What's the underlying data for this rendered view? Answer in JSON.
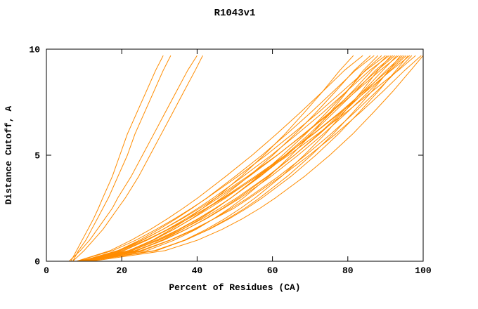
{
  "chart_data": {
    "type": "line",
    "title": "R1043v1",
    "xlabel": "Percent of Residues (CA)",
    "ylabel": "Distance Cutoff, A",
    "xlim": [
      0,
      100
    ],
    "ylim": [
      0,
      10
    ],
    "xticks": [
      0,
      20,
      40,
      60,
      80,
      100
    ],
    "yticks": [
      0,
      5,
      10
    ],
    "grid": false,
    "legend": "none",
    "line_color": "#FF8C00",
    "axis_color": "#000000",
    "cutoffs": [
      0,
      0.5,
      1,
      1.5,
      2,
      2.5,
      3,
      4,
      5,
      6,
      7,
      8,
      9,
      9.7
    ],
    "series": [
      [
        12,
        31.5,
        40.2,
        46.6,
        52,
        56.7,
        60.9,
        68.5,
        75.2,
        81.3,
        86.7,
        91.9,
        96.7,
        100
      ],
      [
        10,
        25,
        32.8,
        39,
        44.5,
        49.8,
        54.1,
        62.3,
        69.8,
        76.8,
        83.2,
        89.3,
        95.1,
        99.5
      ],
      [
        9,
        19.5,
        26.4,
        32.2,
        37.6,
        42.6,
        47.3,
        56,
        64.3,
        72,
        79.4,
        86.4,
        93.4,
        98
      ],
      [
        11,
        25.5,
        33,
        39.4,
        44.4,
        49.1,
        53.6,
        61.6,
        68.8,
        75.5,
        81.7,
        87.6,
        93.2,
        97
      ],
      [
        10,
        20.1,
        26.8,
        32.4,
        37.6,
        42.4,
        47,
        55.4,
        63.4,
        70.9,
        78,
        84.8,
        91.5,
        96.5
      ],
      [
        9,
        28.7,
        36.9,
        43.2,
        48.5,
        53.2,
        57.4,
        64.9,
        71.5,
        77.5,
        82.9,
        88,
        92.8,
        96
      ],
      [
        9,
        23.5,
        31,
        37,
        42.4,
        47.1,
        51.6,
        59.6,
        66.8,
        73.5,
        79.7,
        85.6,
        91.2,
        95.5
      ],
      [
        12,
        21.8,
        28.2,
        33.7,
        38.6,
        43.3,
        47.7,
        55.8,
        63.5,
        70.8,
        77.7,
        84.2,
        90.7,
        95
      ],
      [
        8,
        22.5,
        30,
        36,
        41.4,
        46.1,
        50.6,
        58.6,
        65.8,
        72.5,
        78.7,
        84.6,
        90.2,
        94.5
      ],
      [
        10,
        29.1,
        37,
        43,
        48.1,
        52.7,
        56.7,
        63.9,
        70.3,
        76.1,
        81.3,
        86.3,
        90.9,
        94
      ],
      [
        9,
        18.9,
        25.4,
        30.9,
        36,
        40.7,
        45.1,
        53.4,
        61.2,
        68.5,
        75.4,
        82.1,
        88.6,
        93.5
      ],
      [
        10,
        24,
        31.2,
        37.1,
        42.2,
        46.8,
        51.1,
        58.8,
        65.8,
        72.3,
        78.2,
        84,
        89.3,
        93
      ],
      [
        11,
        20.6,
        26.8,
        32.1,
        37,
        41.5,
        45.8,
        53.8,
        61.3,
        68.3,
        75.1,
        81.5,
        87.8,
        92.5
      ],
      [
        8,
        22,
        29.2,
        35.1,
        40.2,
        44.8,
        49.1,
        56.8,
        63.8,
        70.3,
        76.2,
        82,
        87.3,
        92
      ],
      [
        11,
        29.2,
        36.7,
        42.4,
        47.3,
        51.6,
        55.5,
        62.4,
        68.4,
        74,
        78.9,
        83.6,
        88,
        91.5
      ],
      [
        10,
        19.4,
        25.6,
        30.9,
        35.7,
        40.2,
        44.4,
        52.2,
        59.7,
        66.6,
        73.3,
        79.6,
        85.8,
        91
      ],
      [
        9,
        22.7,
        29.7,
        35.4,
        40.4,
        44.9,
        49.1,
        56.6,
        63.4,
        69.8,
        75.6,
        81.2,
        86.4,
        90.5
      ],
      [
        8,
        17.6,
        23.8,
        29.1,
        34,
        38.5,
        42.8,
        50.8,
        58.3,
        65.3,
        72.1,
        78.5,
        84.8,
        90
      ],
      [
        11,
        24,
        30.7,
        36.1,
        40.9,
        45.1,
        49.1,
        56.3,
        62.7,
        68.8,
        74.3,
        79.6,
        84.6,
        89
      ],
      [
        9,
        26.7,
        34,
        39.7,
        44.4,
        48.6,
        52.4,
        59.1,
        65,
        70.4,
        75.2,
        79.8,
        84.1,
        88
      ],
      [
        10,
        19,
        24.8,
        29.8,
        34.4,
        38.7,
        42.7,
        50.1,
        57.2,
        63.8,
        70.1,
        76.1,
        82,
        87
      ],
      [
        9,
        21.8,
        28.5,
        33.8,
        38.5,
        42.7,
        46.6,
        53.7,
        60.1,
        66,
        71.5,
        76.7,
        81.7,
        86
      ],
      [
        8,
        16.9,
        22.6,
        27.6,
        32.1,
        36.3,
        40.3,
        47.6,
        54.6,
        61.1,
        67.3,
        73.3,
        79.1,
        84
      ],
      [
        10,
        22,
        28.2,
        33.1,
        37.5,
        41.5,
        45.1,
        51.7,
        57.7,
        63.3,
        68.4,
        73.3,
        77.9,
        81.5
      ],
      [
        6.5,
        8,
        9.5,
        11,
        12.5,
        13.8,
        15,
        17.5,
        19.5,
        21.5,
        24,
        26.5,
        29,
        31
      ],
      [
        7,
        8.5,
        10.5,
        12,
        13.5,
        15,
        16.5,
        19,
        21.5,
        23.5,
        26,
        28.5,
        31,
        33
      ],
      [
        6,
        9,
        11.5,
        13.5,
        15.5,
        17.5,
        19,
        22.5,
        25.5,
        28.5,
        31.5,
        34.5,
        37.5,
        40
      ],
      [
        7,
        10,
        12.5,
        15,
        17,
        19,
        21,
        24.5,
        27.5,
        30.5,
        33.5,
        36.5,
        39.5,
        41.5
      ]
    ]
  }
}
